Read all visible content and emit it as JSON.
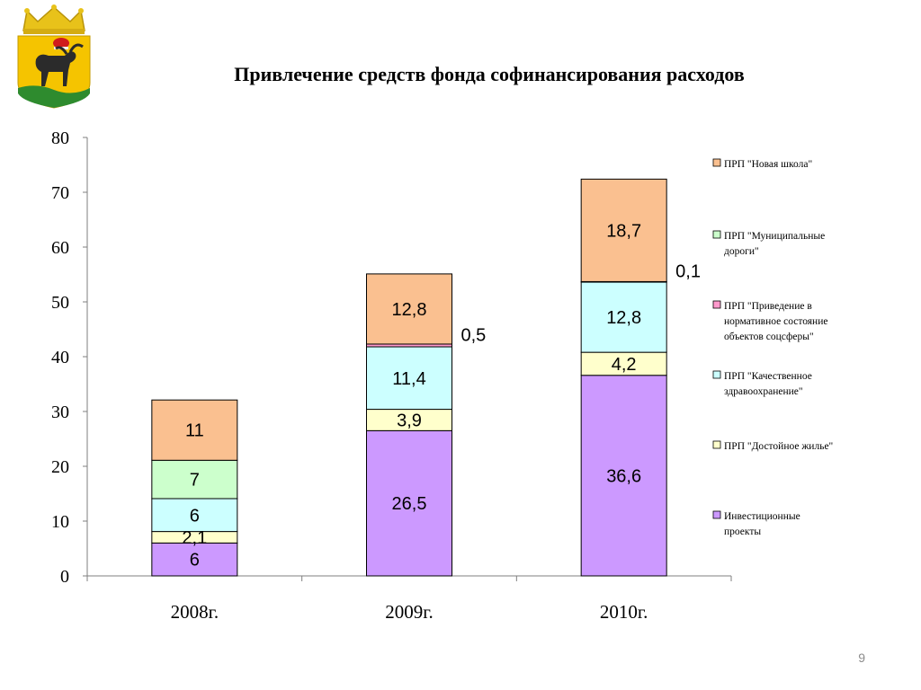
{
  "slide": {
    "title": "Привлечение средств фонда софинансирования расходов",
    "page_number": "9"
  },
  "chart_data": {
    "type": "bar",
    "stacked": true,
    "title": "Привлечение средств фонда софинансирования расходов",
    "xlabel": "",
    "ylabel": "",
    "ylim": [
      0,
      80
    ],
    "y_ticks": [
      "0",
      "10",
      "20",
      "30",
      "40",
      "50",
      "60",
      "70",
      "80"
    ],
    "categories": [
      "2008г.",
      "2009г.",
      "2010г."
    ],
    "legend_position": "right",
    "grid": false,
    "series": [
      {
        "name": "Инвестиционные  проекты",
        "color": "#cc99ff",
        "values": [
          6,
          26.5,
          36.6
        ],
        "labels": [
          "6",
          "26,5",
          "36,6"
        ]
      },
      {
        "name": "ПРП \"Достойное  жилье\"",
        "color": "#ffffcc",
        "values": [
          2.1,
          3.9,
          4.2
        ],
        "labels": [
          "2,1",
          "3,9",
          "4,2"
        ]
      },
      {
        "name": "ПРП \"Качественное здравоохранение\"",
        "color": "#ccffff",
        "values": [
          6,
          11.4,
          12.8
        ],
        "labels": [
          "6",
          "11,4",
          "12,8"
        ]
      },
      {
        "name": "ПРП \"Приведение  в нормативное состояние объектов соцсферы\"",
        "color": "#ff99cc",
        "values": [
          0,
          0.5,
          0.1
        ],
        "labels": [
          "",
          "0,5",
          "0,1"
        ]
      },
      {
        "name": "ПРП \"Муниципальные дороги\"",
        "color": "#ccffcc",
        "values": [
          7,
          0,
          0
        ],
        "labels": [
          "7",
          "",
          ""
        ]
      },
      {
        "name": "ПРП \"Новая школа\"",
        "color": "#fac090",
        "values": [
          11,
          12.8,
          18.7
        ],
        "labels": [
          "11",
          "12,8",
          "18,7"
        ]
      }
    ],
    "legend_order": [
      5,
      4,
      3,
      2,
      1,
      0
    ]
  }
}
